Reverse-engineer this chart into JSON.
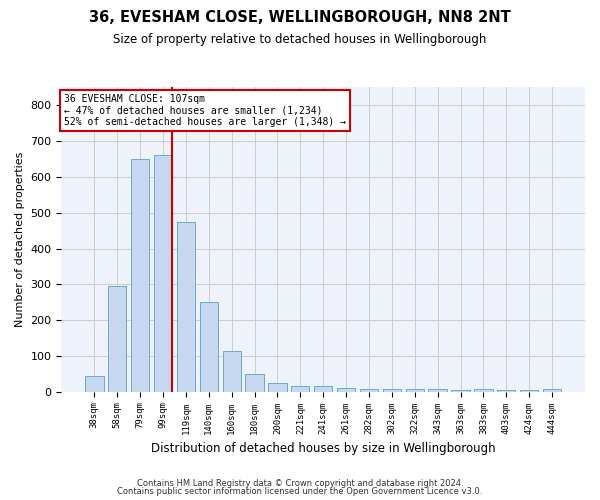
{
  "title": "36, EVESHAM CLOSE, WELLINGBOROUGH, NN8 2NT",
  "subtitle": "Size of property relative to detached houses in Wellingborough",
  "xlabel": "Distribution of detached houses by size in Wellingborough",
  "ylabel": "Number of detached properties",
  "footer1": "Contains HM Land Registry data © Crown copyright and database right 2024.",
  "footer2": "Contains public sector information licensed under the Open Government Licence v3.0.",
  "annotation_title": "36 EVESHAM CLOSE: 107sqm",
  "annotation_line1": "← 47% of detached houses are smaller (1,234)",
  "annotation_line2": "52% of semi-detached houses are larger (1,348) →",
  "categories": [
    "38sqm",
    "58sqm",
    "79sqm",
    "99sqm",
    "119sqm",
    "140sqm",
    "160sqm",
    "180sqm",
    "200sqm",
    "221sqm",
    "241sqm",
    "261sqm",
    "282sqm",
    "302sqm",
    "322sqm",
    "343sqm",
    "363sqm",
    "383sqm",
    "403sqm",
    "424sqm",
    "444sqm"
  ],
  "values": [
    45,
    295,
    650,
    660,
    475,
    250,
    115,
    50,
    25,
    15,
    15,
    10,
    8,
    8,
    8,
    8,
    5,
    8,
    5,
    5,
    8
  ],
  "bar_color": "#c5d8f0",
  "bar_edge_color": "#6aaad4",
  "ylim": [
    0,
    850
  ],
  "yticks": [
    0,
    100,
    200,
    300,
    400,
    500,
    600,
    700,
    800
  ],
  "grid_color": "#cccccc",
  "background_color": "#eef2fa",
  "annotation_box_color": "#ffffff",
  "annotation_box_edge": "#cc0000",
  "red_line_color": "#cc0000",
  "figsize": [
    6.0,
    5.0
  ],
  "dpi": 100
}
